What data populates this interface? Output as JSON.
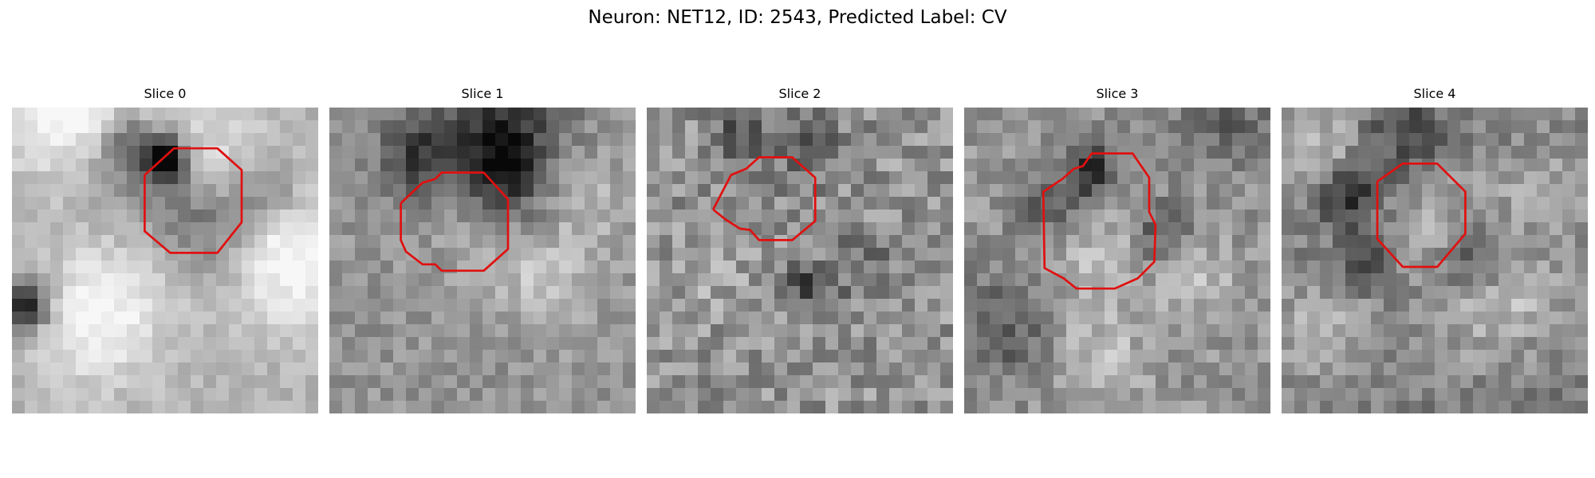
{
  "figure": {
    "title": "Neuron: NET12, ID: 2543, Predicted Label: CV"
  },
  "panels": [
    {
      "title": "Slice 0",
      "roi_color": "#e01010",
      "roi_polygon": [
        [
          10.4,
          5.3
        ],
        [
          12.7,
          3.2
        ],
        [
          16.1,
          3.2
        ],
        [
          18.0,
          4.9
        ],
        [
          18.0,
          9.0
        ],
        [
          16.1,
          11.4
        ],
        [
          12.4,
          11.4
        ],
        [
          10.4,
          9.7
        ],
        [
          10.4,
          5.3
        ]
      ],
      "blobs": [
        [
          4.5,
          -1.0,
          4,
          0.75
        ],
        [
          6.5,
          16.0,
          3.5,
          0.6
        ],
        [
          14.6,
          4.6,
          3.5,
          0.45
        ],
        [
          21.0,
          8.7,
          3.5,
          0.35
        ],
        [
          11.5,
          3.5,
          1.3,
          -1.6
        ],
        [
          8.4,
          1.4,
          1.4,
          -0.5
        ],
        [
          15.5,
          8.5,
          2.6,
          -0.55
        ],
        [
          19.6,
          6.0,
          2.0,
          -0.55
        ],
        [
          8.2,
          4.0,
          2.5,
          -0.5
        ],
        [
          12.5,
          7.0,
          2.4,
          -0.35
        ],
        [
          0.5,
          15.0,
          1.3,
          -1.4
        ],
        [
          21.5,
          13.0,
          3,
          0.4
        ]
      ],
      "base": 0.7,
      "noise": 0.07,
      "seed": 11
    },
    {
      "title": "Slice 1",
      "roi_color": "#e01010",
      "roi_polygon": [
        [
          5.6,
          7.5
        ],
        [
          7.3,
          5.9
        ],
        [
          8.3,
          5.6
        ],
        [
          8.8,
          5.1
        ],
        [
          12.1,
          5.1
        ],
        [
          14.0,
          7.2
        ],
        [
          14.0,
          11.1
        ],
        [
          12.1,
          12.8
        ],
        [
          8.8,
          12.8
        ],
        [
          8.3,
          12.3
        ],
        [
          7.3,
          12.3
        ],
        [
          6.0,
          11.3
        ],
        [
          5.6,
          10.4
        ],
        [
          5.6,
          7.5
        ]
      ],
      "blobs": [
        [
          12.5,
          4.3,
          2.0,
          -1.0
        ],
        [
          11.0,
          3.8,
          1.8,
          0.3
        ],
        [
          10.0,
          2.5,
          3.5,
          -0.45
        ],
        [
          6.3,
          3.3,
          2,
          -0.5
        ],
        [
          14.5,
          0.5,
          3,
          -0.5
        ],
        [
          12.5,
          8.0,
          3.6,
          0.25
        ],
        [
          16.3,
          12.5,
          3,
          0.35
        ],
        [
          20.5,
          6.8,
          3,
          0.2
        ],
        [
          15.0,
          8.0,
          2.2,
          -0.35
        ]
      ],
      "base": 0.58,
      "noise": 0.1,
      "seed": 23
    },
    {
      "title": "Slice 2",
      "roi_color": "#e01010",
      "roi_polygon": [
        [
          5.2,
          8.0
        ],
        [
          6.6,
          5.3
        ],
        [
          7.8,
          4.8
        ],
        [
          8.8,
          3.9
        ],
        [
          11.4,
          3.9
        ],
        [
          13.2,
          5.5
        ],
        [
          13.2,
          8.9
        ],
        [
          11.4,
          10.4
        ],
        [
          8.8,
          10.4
        ],
        [
          8.1,
          9.6
        ],
        [
          7.3,
          9.5
        ],
        [
          6.2,
          8.8
        ],
        [
          5.2,
          8.0
        ]
      ],
      "blobs": [
        [
          7.5,
          7.0,
          3.6,
          -0.05
        ],
        [
          6.5,
          1.8,
          1.5,
          -0.5
        ],
        [
          12.0,
          13.5,
          1.3,
          -0.6
        ],
        [
          4.5,
          12.0,
          2.0,
          0.2
        ],
        [
          12.5,
          2.5,
          2.0,
          -0.4
        ],
        [
          16.5,
          12.0,
          2,
          -0.3
        ]
      ],
      "base": 0.58,
      "noise": 0.16,
      "seed": 37
    },
    {
      "title": "Slice 3",
      "roi_color": "#e01010",
      "roi_polygon": [
        [
          7.7,
          5.6
        ],
        [
          8.6,
          4.8
        ],
        [
          9.3,
          4.6
        ],
        [
          10.0,
          3.6
        ],
        [
          13.2,
          3.6
        ],
        [
          14.5,
          5.5
        ],
        [
          14.5,
          8.2
        ],
        [
          15.0,
          9.2
        ],
        [
          14.9,
          12.1
        ],
        [
          13.6,
          13.4
        ],
        [
          11.8,
          14.2
        ],
        [
          8.8,
          14.2
        ],
        [
          7.8,
          13.4
        ],
        [
          6.3,
          12.6
        ],
        [
          6.2,
          6.6
        ],
        [
          7.7,
          5.6
        ]
      ],
      "blobs": [
        [
          9.5,
          4.5,
          1.5,
          -0.8
        ],
        [
          6.5,
          7.5,
          1.8,
          -0.5
        ],
        [
          10.0,
          11.5,
          3.0,
          0.4
        ],
        [
          14.6,
          9.4,
          1.8,
          -0.5
        ],
        [
          18.0,
          13.0,
          2,
          0.3
        ],
        [
          2.5,
          16.5,
          3,
          -0.45
        ],
        [
          20.0,
          0.5,
          2.5,
          -0.4
        ],
        [
          10.0,
          19.5,
          2.5,
          0.35
        ]
      ],
      "base": 0.58,
      "noise": 0.12,
      "seed": 53
    },
    {
      "title": "Slice 4",
      "roi_color": "#e01010",
      "roi_polygon": [
        [
          7.5,
          5.8
        ],
        [
          9.5,
          4.4
        ],
        [
          12.2,
          4.4
        ],
        [
          14.4,
          6.6
        ],
        [
          14.4,
          9.9
        ],
        [
          12.2,
          12.5
        ],
        [
          9.5,
          12.5
        ],
        [
          7.5,
          10.3
        ],
        [
          7.5,
          5.8
        ]
      ],
      "blobs": [
        [
          5.0,
          6.5,
          1.8,
          -0.7
        ],
        [
          9.2,
          2.0,
          2.5,
          -0.45
        ],
        [
          6.5,
          12.0,
          1.5,
          -0.55
        ],
        [
          14.5,
          11.5,
          1.8,
          -0.45
        ],
        [
          11.0,
          8.5,
          3.4,
          0.35
        ],
        [
          3.0,
          17.0,
          3.0,
          0.4
        ],
        [
          15.5,
          16.0,
          2.8,
          0.35
        ],
        [
          20.0,
          6.0,
          3,
          0.3
        ],
        [
          2.5,
          2.5,
          2.5,
          0.45
        ],
        [
          19.5,
          14.0,
          2.5,
          0.25
        ]
      ],
      "base": 0.5,
      "noise": 0.12,
      "seed": 71
    }
  ]
}
